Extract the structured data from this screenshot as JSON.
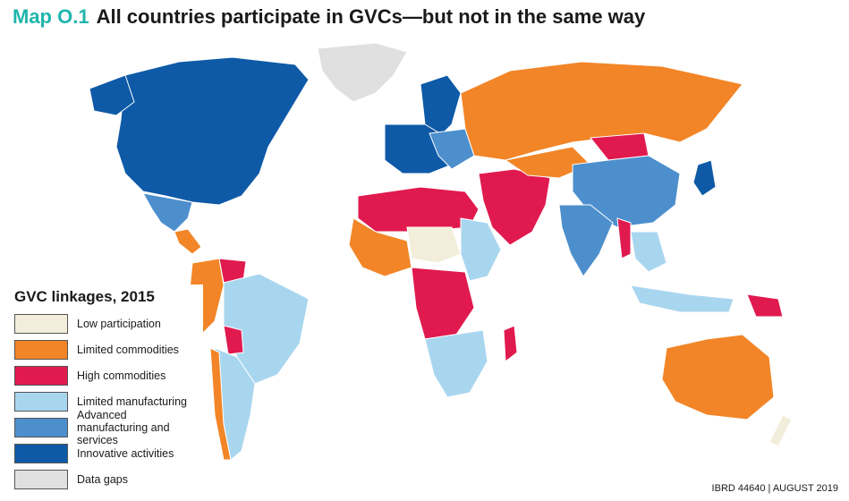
{
  "header": {
    "map_label": "Map O.1",
    "title": "All countries participate in GVCs—but not in the same way"
  },
  "legend": {
    "title": "GVC linkages, 2015",
    "items": [
      {
        "label": "Low participation",
        "color": "#f2eedb"
      },
      {
        "label": "Limited commodities",
        "color": "#f28527"
      },
      {
        "label": "High commodities",
        "color": "#e01a4f"
      },
      {
        "label": "Limited manufacturing",
        "color": "#a9d6ef"
      },
      {
        "label": "Advanced manufacturing and services",
        "color": "#4d8fcc"
      },
      {
        "label": "Innovative activities",
        "color": "#0e5aa7"
      },
      {
        "label": "Data gaps",
        "color": "#e0e0e0"
      }
    ]
  },
  "credit": "IBRD 44640 | AUGUST 2019"
}
